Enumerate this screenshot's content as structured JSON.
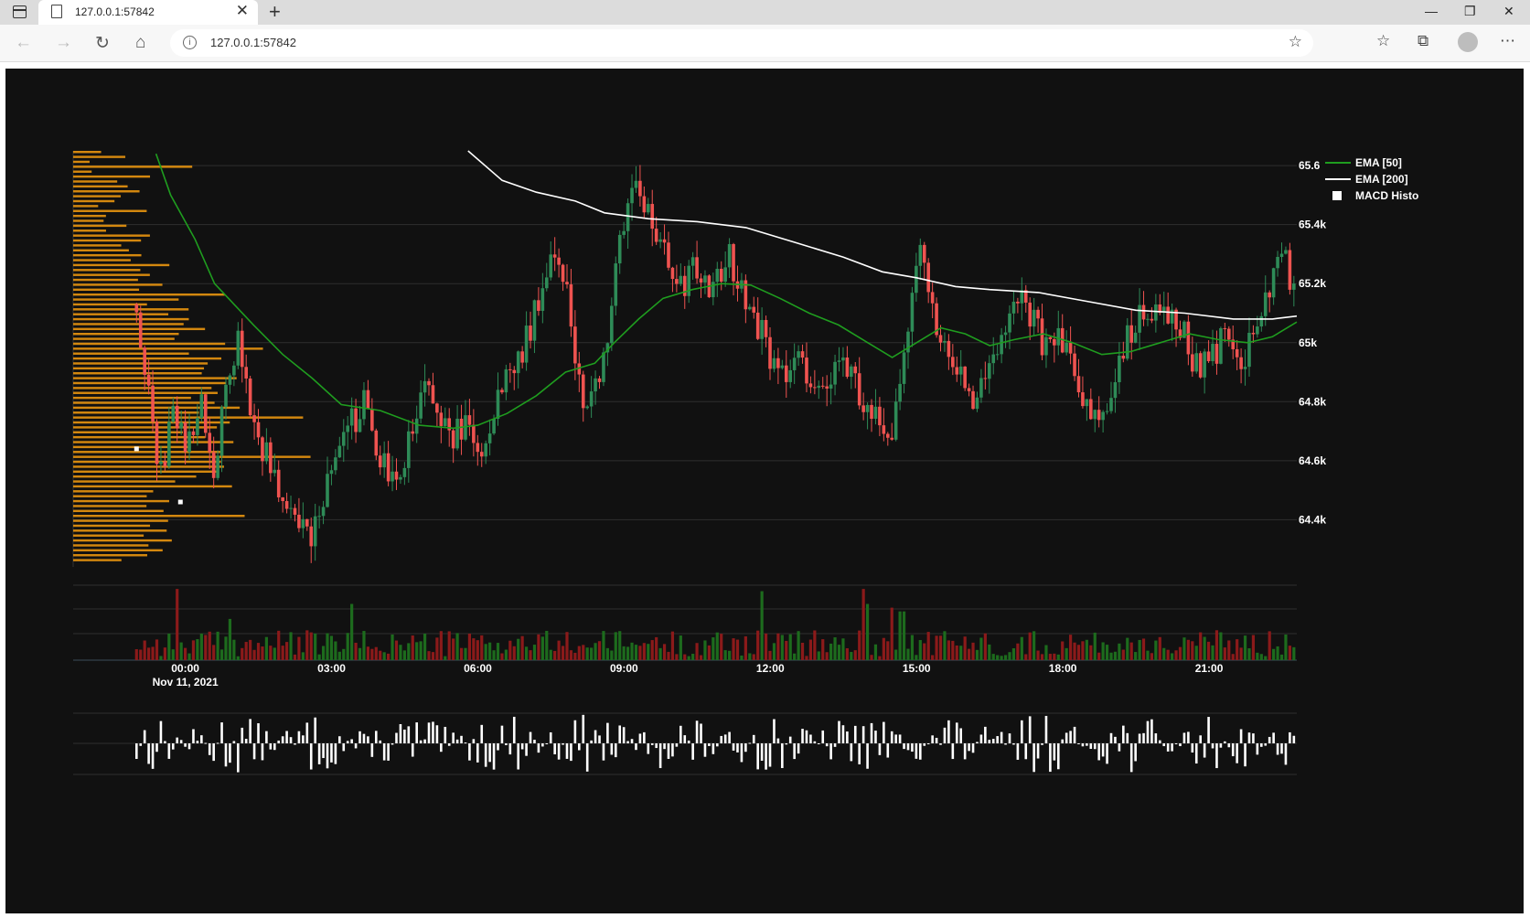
{
  "browser": {
    "tab_title": "127.0.0.1:57842",
    "url": "127.0.0.1:57842"
  },
  "chart_data": {
    "type": "candlestick",
    "background": "#111111",
    "colors": {
      "up": "#2e8b57",
      "down": "#ef5350",
      "ema50": "#1f9d1f",
      "ema200": "#ffffff",
      "volume_profile": "#d4880f",
      "macd": "#ffffff",
      "vol_up": "#1d6b1d",
      "vol_down": "#8b1a1a"
    },
    "y_ticks": [
      "65.6",
      "65.4k",
      "65.2k",
      "65k",
      "64.8k",
      "64.6k",
      "64.4k"
    ],
    "y_tick_values": [
      65600,
      65400,
      65200,
      65000,
      64800,
      64600,
      64400
    ],
    "ylim": [
      64240,
      65650
    ],
    "x_ticks": [
      "00:00",
      "03:00",
      "06:00",
      "09:00",
      "12:00",
      "15:00",
      "18:00",
      "21:00"
    ],
    "x_tick_hours": [
      0,
      3,
      6,
      9,
      12,
      15,
      18,
      21
    ],
    "x_sub_label": "Nov 11, 2021",
    "xlim_hours": [
      -2.3,
      22.8
    ],
    "legend": {
      "position": "top-right",
      "items": [
        {
          "label": "EMA [50]",
          "color": "#1f9d1f",
          "kind": "line"
        },
        {
          "label": "EMA [200]",
          "color": "#ffffff",
          "kind": "line"
        },
        {
          "label": "MACD Histo",
          "color": "#ffffff",
          "kind": "square"
        }
      ]
    },
    "price_path": [
      [
        -1.0,
        65130
      ],
      [
        -0.8,
        64850
      ],
      [
        -0.5,
        64550
      ],
      [
        -0.2,
        64790
      ],
      [
        0.0,
        64620
      ],
      [
        0.3,
        64820
      ],
      [
        0.6,
        64560
      ],
      [
        0.9,
        64900
      ],
      [
        1.1,
        65030
      ],
      [
        1.3,
        64780
      ],
      [
        1.6,
        64640
      ],
      [
        1.9,
        64500
      ],
      [
        2.2,
        64420
      ],
      [
        2.6,
        64300
      ],
      [
        2.8,
        64480
      ],
      [
        3.1,
        64600
      ],
      [
        3.4,
        64720
      ],
      [
        3.7,
        64800
      ],
      [
        4.0,
        64600
      ],
      [
        4.3,
        64500
      ],
      [
        4.6,
        64680
      ],
      [
        4.9,
        64840
      ],
      [
        5.2,
        64760
      ],
      [
        5.5,
        64680
      ],
      [
        5.8,
        64720
      ],
      [
        6.0,
        64600
      ],
      [
        6.3,
        64760
      ],
      [
        6.6,
        64880
      ],
      [
        6.9,
        64960
      ],
      [
        7.2,
        65120
      ],
      [
        7.5,
        65330
      ],
      [
        7.8,
        65220
      ],
      [
        8.0,
        64950
      ],
      [
        8.2,
        64760
      ],
      [
        8.4,
        64840
      ],
      [
        8.6,
        64980
      ],
      [
        8.8,
        65200
      ],
      [
        9.0,
        65420
      ],
      [
        9.2,
        65560
      ],
      [
        9.4,
        65480
      ],
      [
        9.6,
        65350
      ],
      [
        9.9,
        65280
      ],
      [
        10.2,
        65200
      ],
      [
        10.5,
        65250
      ],
      [
        10.8,
        65150
      ],
      [
        11.1,
        65300
      ],
      [
        11.4,
        65200
      ],
      [
        11.7,
        65080
      ],
      [
        12.0,
        64950
      ],
      [
        12.3,
        64860
      ],
      [
        12.6,
        64950
      ],
      [
        12.9,
        64840
      ],
      [
        13.2,
        64880
      ],
      [
        13.5,
        64980
      ],
      [
        13.8,
        64820
      ],
      [
        14.1,
        64780
      ],
      [
        14.3,
        64640
      ],
      [
        14.5,
        64700
      ],
      [
        14.7,
        64880
      ],
      [
        14.9,
        65120
      ],
      [
        15.1,
        65360
      ],
      [
        15.3,
        65150
      ],
      [
        15.5,
        65000
      ],
      [
        15.8,
        64920
      ],
      [
        16.1,
        64800
      ],
      [
        16.4,
        64850
      ],
      [
        16.7,
        65000
      ],
      [
        17.0,
        65170
      ],
      [
        17.3,
        65100
      ],
      [
        17.6,
        65000
      ],
      [
        17.9,
        65050
      ],
      [
        18.2,
        64900
      ],
      [
        18.5,
        64780
      ],
      [
        18.8,
        64720
      ],
      [
        19.0,
        64860
      ],
      [
        19.3,
        65000
      ],
      [
        19.6,
        65080
      ],
      [
        19.9,
        65130
      ],
      [
        20.2,
        65100
      ],
      [
        20.5,
        65020
      ],
      [
        20.8,
        64900
      ],
      [
        21.1,
        64960
      ],
      [
        21.4,
        65040
      ],
      [
        21.7,
        64940
      ],
      [
        22.0,
        65060
      ],
      [
        22.3,
        65220
      ],
      [
        22.5,
        65300
      ],
      [
        22.7,
        65200
      ]
    ],
    "ema50": [
      [
        -0.6,
        65640
      ],
      [
        -0.3,
        65500
      ],
      [
        0.2,
        65350
      ],
      [
        0.6,
        65200
      ],
      [
        1.0,
        65130
      ],
      [
        1.4,
        65060
      ],
      [
        2.0,
        64960
      ],
      [
        2.6,
        64880
      ],
      [
        3.2,
        64790
      ],
      [
        4.0,
        64770
      ],
      [
        4.8,
        64720
      ],
      [
        5.5,
        64710
      ],
      [
        6.0,
        64720
      ],
      [
        6.6,
        64760
      ],
      [
        7.2,
        64820
      ],
      [
        7.8,
        64900
      ],
      [
        8.4,
        64930
      ],
      [
        8.8,
        65000
      ],
      [
        9.3,
        65080
      ],
      [
        9.8,
        65150
      ],
      [
        10.4,
        65180
      ],
      [
        11.0,
        65200
      ],
      [
        11.6,
        65195
      ],
      [
        12.2,
        65150
      ],
      [
        12.8,
        65100
      ],
      [
        13.4,
        65060
      ],
      [
        14.0,
        65000
      ],
      [
        14.5,
        64950
      ],
      [
        15.0,
        65000
      ],
      [
        15.5,
        65050
      ],
      [
        16.0,
        65030
      ],
      [
        16.5,
        64990
      ],
      [
        17.0,
        65010
      ],
      [
        17.6,
        65030
      ],
      [
        18.2,
        65000
      ],
      [
        18.8,
        64960
      ],
      [
        19.4,
        64970
      ],
      [
        20.0,
        65000
      ],
      [
        20.6,
        65030
      ],
      [
        21.2,
        65010
      ],
      [
        21.8,
        65000
      ],
      [
        22.3,
        65020
      ],
      [
        22.8,
        65070
      ]
    ],
    "ema200": [
      [
        5.8,
        65650
      ],
      [
        6.5,
        65550
      ],
      [
        7.2,
        65510
      ],
      [
        8.0,
        65480
      ],
      [
        8.6,
        65440
      ],
      [
        9.5,
        65420
      ],
      [
        10.5,
        65410
      ],
      [
        11.5,
        65390
      ],
      [
        12.5,
        65340
      ],
      [
        13.5,
        65290
      ],
      [
        14.3,
        65240
      ],
      [
        15.0,
        65220
      ],
      [
        15.8,
        65190
      ],
      [
        16.5,
        65180
      ],
      [
        17.5,
        65170
      ],
      [
        18.5,
        65140
      ],
      [
        19.5,
        65110
      ],
      [
        20.5,
        65100
      ],
      [
        21.5,
        65080
      ],
      [
        22.3,
        65080
      ],
      [
        22.8,
        65090
      ]
    ],
    "vp_max_price": 65650,
    "vp_min_price": 64250,
    "vp_rows": 84,
    "vp_seed": 7,
    "volume_spikes": [
      [
        -0.2,
        0.95
      ],
      [
        0.9,
        0.55
      ],
      [
        3.4,
        0.75
      ],
      [
        11.8,
        0.92
      ],
      [
        13.9,
        0.95
      ],
      [
        14.0,
        0.75
      ],
      [
        14.5,
        0.7
      ],
      [
        14.7,
        0.65
      ]
    ],
    "macd_seed": 13,
    "hollow_markers": [
      [
        -1.0,
        64640
      ],
      [
        -0.1,
        64460
      ]
    ]
  }
}
